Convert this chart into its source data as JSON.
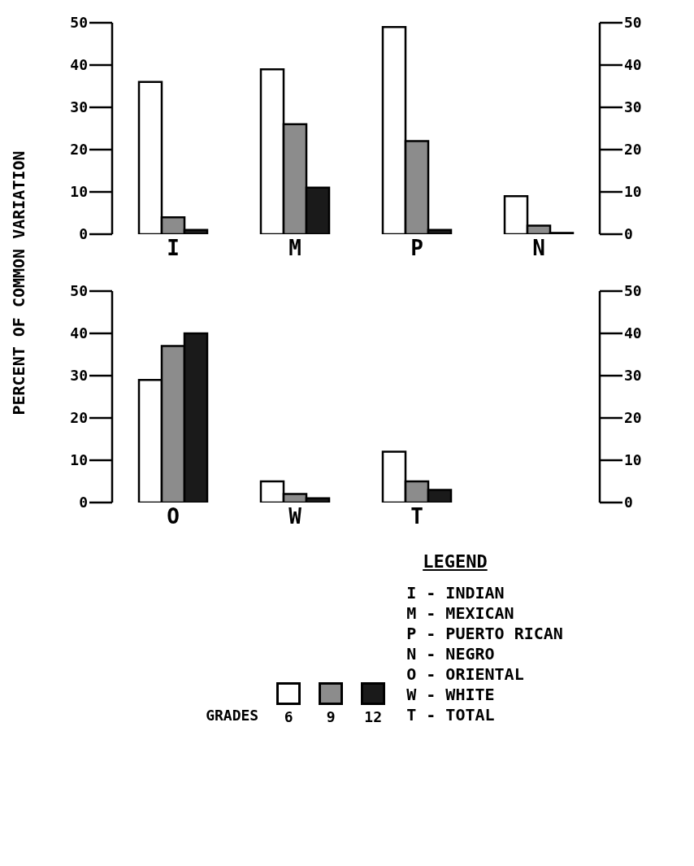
{
  "chart_data": [
    {
      "type": "bar",
      "ylabel": "PERCENT OF COMMON VARIATION",
      "categories": [
        "I",
        "M",
        "P",
        "N"
      ],
      "series": [
        {
          "color": "#ffffff",
          "values": [
            36,
            39,
            49,
            9
          ]
        },
        {
          "color": "#8c8c8c",
          "values": [
            4,
            26,
            22,
            2
          ]
        },
        {
          "color": "#1a1a1a",
          "values": [
            1,
            11,
            1,
            0.3
          ]
        }
      ],
      "ylim": [
        0,
        50
      ],
      "yticks": [
        0,
        10,
        20,
        30,
        40,
        50
      ],
      "y2lim": [
        0,
        50
      ],
      "y2ticks": [
        0,
        10,
        20,
        30,
        40,
        50
      ]
    },
    {
      "type": "bar",
      "categories": [
        "O",
        "W",
        "T",
        null
      ],
      "series": [
        {
          "name": "6",
          "color": "#ffffff",
          "values": [
            29,
            5,
            12,
            null
          ]
        },
        {
          "name": "9",
          "color": "#8c8c8c",
          "values": [
            37,
            2,
            5,
            null
          ]
        },
        {
          "name": "12",
          "color": "#1a1a1a",
          "values": [
            40,
            1,
            3,
            null
          ]
        }
      ],
      "ylim": [
        0,
        50
      ],
      "yticks": [
        0,
        10,
        20,
        30,
        40,
        50
      ],
      "y2lim": [
        0,
        50
      ],
      "y2ticks": [
        0,
        10,
        20,
        30,
        40,
        50
      ],
      "legend": "bottom",
      "legend_title": "GRADES",
      "annotations": [
        "LEGEND",
        "I - INDIAN",
        "M - MEXICAN",
        "P - PUERTO RICAN",
        "N - NEGRO",
        "O - ORIENTAL",
        "W - WHITE",
        "T - TOTAL"
      ]
    }
  ]
}
